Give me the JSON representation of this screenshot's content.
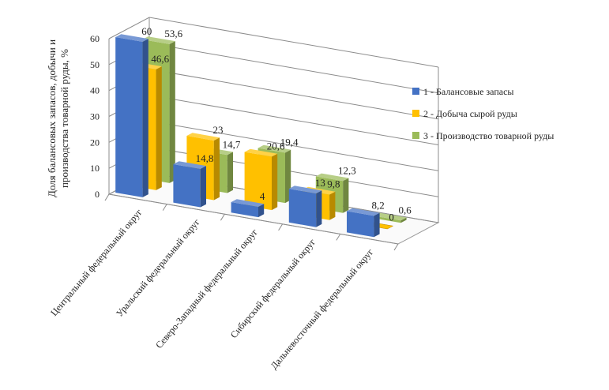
{
  "chart_data": {
    "type": "bar",
    "style": "3d-clustered-depth",
    "ylabel_lines": [
      "Доля  балансовых запасов, добычи и",
      "производства товарной руды, %"
    ],
    "ylim": [
      0,
      60
    ],
    "yticks": [
      0,
      10,
      20,
      30,
      40,
      50,
      60
    ],
    "categories": [
      "Центральный федеральный округ",
      "Уральский федеральный округ",
      "Северо-Западный федеральный округ",
      "Сибирский федеральный округ",
      "Дальневосточный федеральный округ"
    ],
    "series": [
      {
        "name": "1 - Балансовые запасы",
        "color": "#4472C4",
        "values": [
          60,
          14.8,
          4,
          13,
          8.2
        ],
        "labels": [
          "60",
          "14,8",
          "4",
          "13",
          "8,2"
        ]
      },
      {
        "name": "2 - Добыча сырой руды",
        "color": "#FFC000",
        "values": [
          46.6,
          23,
          20.6,
          9.8,
          0
        ],
        "labels": [
          "46,6",
          "23",
          "20,6",
          "9,8",
          "0"
        ]
      },
      {
        "name": "3 - Производство товарной руды",
        "color": "#9BBB59",
        "values": [
          53.6,
          14.7,
          19.4,
          12.3,
          0.6
        ],
        "labels": [
          "53,6",
          "14,7",
          "19,4",
          "12,3",
          "0,6"
        ]
      }
    ],
    "legend_position": "right"
  }
}
